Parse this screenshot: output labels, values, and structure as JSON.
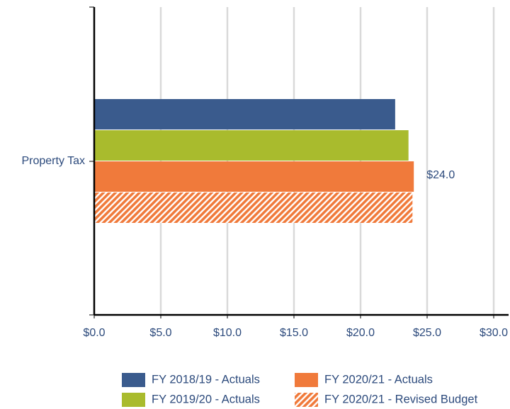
{
  "chart_data": {
    "type": "hbar",
    "categories": [
      "Property Tax"
    ],
    "series": [
      {
        "name": "FY 2018/19 - Actuals",
        "color": "#3a5b8d",
        "values": [
          22.6
        ]
      },
      {
        "name": "FY 2019/20 - Actuals",
        "color": "#a9bb2d",
        "values": [
          23.6
        ]
      },
      {
        "name": "FY 2020/21 - Actuals",
        "color": "#f07a3b",
        "values": [
          24.0
        ],
        "value_labels": [
          "$24.0"
        ]
      },
      {
        "name": "FY 2020/21 - Revised Budget",
        "color": "#f07a3b",
        "pattern": "hatch",
        "values": [
          23.9
        ]
      }
    ],
    "xlim": [
      0,
      30
    ],
    "xticks": [
      {
        "value": 0,
        "label": "$0.0"
      },
      {
        "value": 5,
        "label": "$5.0"
      },
      {
        "value": 10,
        "label": "$10.0"
      },
      {
        "value": 15,
        "label": "$15.0"
      },
      {
        "value": 20,
        "label": "$20.0"
      },
      {
        "value": 25,
        "label": "$25.0"
      },
      {
        "value": 30,
        "label": "$30.0"
      }
    ],
    "grid": true,
    "legend": "bottom"
  }
}
